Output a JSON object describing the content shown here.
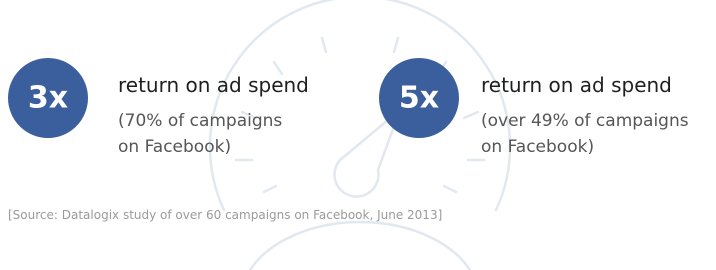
{
  "stats": [
    {
      "multiplier": "3x",
      "heading": "return on ad spend",
      "detail": [
        "(70% of campaigns",
        "on Facebook)"
      ]
    },
    {
      "multiplier": "5x",
      "heading": "return on ad spend",
      "detail": [
        "(over 49% of campaigns",
        "on Facebook)"
      ]
    }
  ],
  "source": "[Source: Datalogix study of over 60 campaigns on Facebook, June 2013]"
}
